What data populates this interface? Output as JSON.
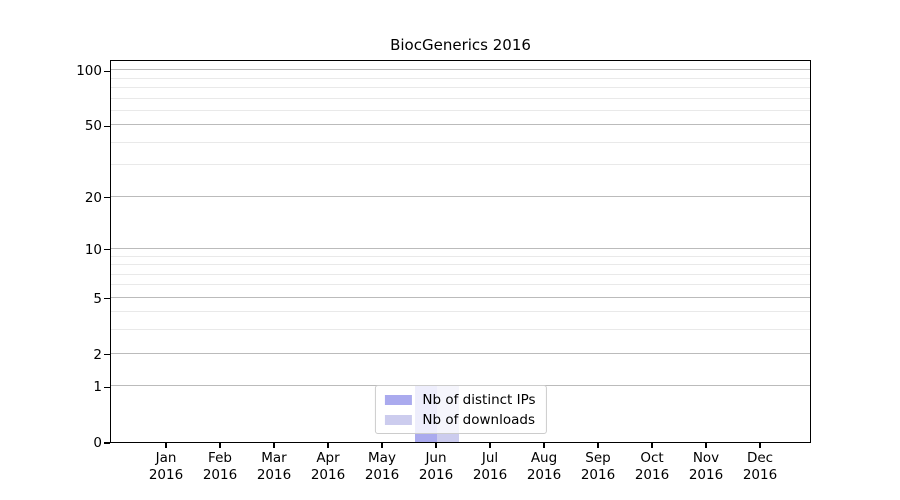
{
  "chart_data": {
    "type": "bar",
    "title": "BiocGenerics 2016",
    "categories": [
      "Jan",
      "Feb",
      "Mar",
      "Apr",
      "May",
      "Jun",
      "Jul",
      "Aug",
      "Sep",
      "Oct",
      "Nov",
      "Dec"
    ],
    "year_label": "2016",
    "series": [
      {
        "id": "distinct-ips",
        "name": "Nb of distinct IPs",
        "color": "#aaaaee",
        "values": [
          0,
          0,
          0,
          0,
          0,
          1,
          0,
          0,
          0,
          0,
          0,
          0
        ]
      },
      {
        "id": "downloads",
        "name": "Nb of downloads",
        "color": "#ccccee",
        "values": [
          0,
          0,
          0,
          0,
          0,
          1,
          0,
          0,
          0,
          0,
          0,
          0
        ]
      }
    ],
    "y_axis": {
      "scale": "log10(1+value)",
      "ticks": [
        0,
        1,
        2,
        5,
        10,
        20,
        50,
        100
      ],
      "minor_gridlines": [
        3,
        4,
        6,
        7,
        8,
        9,
        30,
        40,
        60,
        70,
        80,
        90
      ],
      "ylim": [
        0,
        115
      ]
    },
    "legend": {
      "position": "lower-center"
    },
    "grid": true
  },
  "colors": {
    "background": "#ffffff",
    "axis": "#000000",
    "major_gridline": "#bbbbbb",
    "minor_gridline": "#e9e9e9",
    "legend_border": "#cccccc",
    "bar_distinct_ips": "#aaaaee",
    "bar_downloads": "#ccccee",
    "text": "#000000"
  }
}
